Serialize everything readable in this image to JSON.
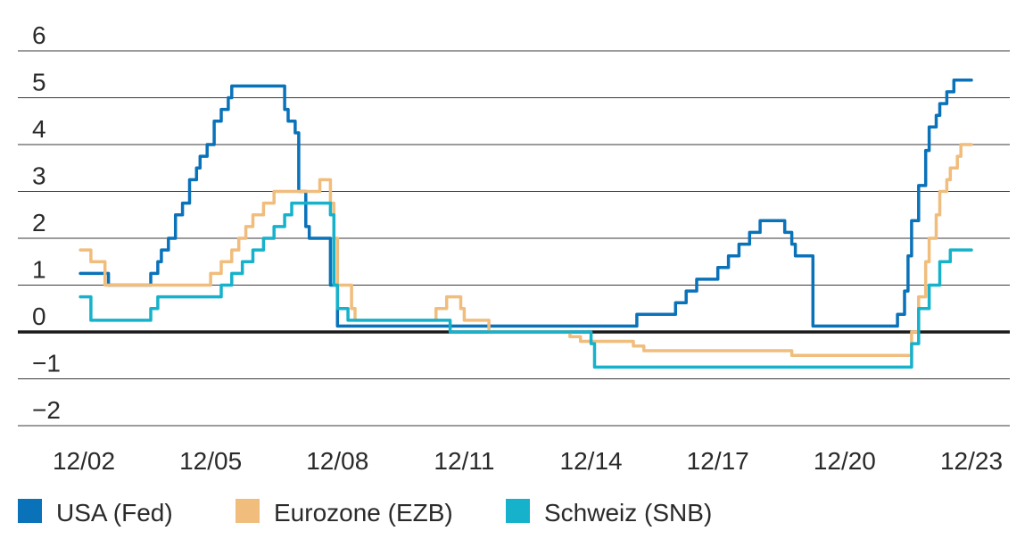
{
  "chart_data": {
    "type": "line",
    "title": "",
    "xlabel": "",
    "ylabel": "",
    "ylim": [
      -2,
      6
    ],
    "xlim": [
      "2002-12",
      "2023-12"
    ],
    "yticks": [
      "6",
      "5",
      "4",
      "3",
      "2",
      "1",
      "0",
      "−1",
      "−2"
    ],
    "ytick_values": [
      6,
      5,
      4,
      3,
      2,
      1,
      0,
      -1,
      -2
    ],
    "xticks": [
      "12/02",
      "12/05",
      "12/08",
      "12/11",
      "12/14",
      "12/17",
      "12/20",
      "12/23"
    ],
    "xtick_values": [
      "2002-12",
      "2005-12",
      "2008-12",
      "2011-12",
      "2014-12",
      "2017-12",
      "2020-12",
      "2023-12"
    ],
    "grid": "horizontal",
    "zero_line": true,
    "legend_position": "bottom",
    "series": [
      {
        "name": "USA (Fed)",
        "color": "#0a72b9",
        "points": [
          [
            "2002-11",
            1.25
          ],
          [
            "2003-06",
            1.25
          ],
          [
            "2003-07",
            1.0
          ],
          [
            "2004-06",
            1.0
          ],
          [
            "2004-07",
            1.25
          ],
          [
            "2004-09",
            1.5
          ],
          [
            "2004-10",
            1.75
          ],
          [
            "2004-12",
            2.0
          ],
          [
            "2005-02",
            2.5
          ],
          [
            "2005-04",
            2.75
          ],
          [
            "2005-06",
            3.25
          ],
          [
            "2005-08",
            3.5
          ],
          [
            "2005-09",
            3.75
          ],
          [
            "2005-11",
            4.0
          ],
          [
            "2006-01",
            4.5
          ],
          [
            "2006-03",
            4.75
          ],
          [
            "2006-05",
            5.0
          ],
          [
            "2006-06",
            5.25
          ],
          [
            "2007-08",
            5.25
          ],
          [
            "2007-09",
            4.75
          ],
          [
            "2007-10",
            4.5
          ],
          [
            "2007-12",
            4.25
          ],
          [
            "2008-01",
            3.0
          ],
          [
            "2008-03",
            2.25
          ],
          [
            "2008-04",
            2.0
          ],
          [
            "2008-09",
            2.0
          ],
          [
            "2008-10",
            1.0
          ],
          [
            "2008-12",
            0.125
          ],
          [
            "2015-12",
            0.125
          ],
          [
            "2016-01",
            0.375
          ],
          [
            "2016-12",
            0.625
          ],
          [
            "2017-03",
            0.875
          ],
          [
            "2017-06",
            1.125
          ],
          [
            "2017-12",
            1.375
          ],
          [
            "2018-03",
            1.625
          ],
          [
            "2018-06",
            1.875
          ],
          [
            "2018-09",
            2.125
          ],
          [
            "2018-12",
            2.375
          ],
          [
            "2019-07",
            2.125
          ],
          [
            "2019-09",
            1.875
          ],
          [
            "2019-10",
            1.625
          ],
          [
            "2020-03",
            0.125
          ],
          [
            "2022-02",
            0.125
          ],
          [
            "2022-03",
            0.375
          ],
          [
            "2022-05",
            0.875
          ],
          [
            "2022-06",
            1.625
          ],
          [
            "2022-07",
            2.375
          ],
          [
            "2022-09",
            3.125
          ],
          [
            "2022-11",
            3.875
          ],
          [
            "2022-12",
            4.375
          ],
          [
            "2023-02",
            4.625
          ],
          [
            "2023-03",
            4.875
          ],
          [
            "2023-05",
            5.125
          ],
          [
            "2023-07",
            5.375
          ],
          [
            "2023-12",
            5.375
          ]
        ]
      },
      {
        "name": "Eurozone (EZB)",
        "color": "#f0bd7d",
        "points": [
          [
            "2002-11",
            1.75
          ],
          [
            "2003-02",
            1.5
          ],
          [
            "2003-06",
            1.0
          ],
          [
            "2005-11",
            1.0
          ],
          [
            "2005-12",
            1.25
          ],
          [
            "2006-03",
            1.5
          ],
          [
            "2006-06",
            1.75
          ],
          [
            "2006-08",
            2.0
          ],
          [
            "2006-10",
            2.25
          ],
          [
            "2006-12",
            2.5
          ],
          [
            "2007-03",
            2.75
          ],
          [
            "2007-06",
            3.0
          ],
          [
            "2008-07",
            3.25
          ],
          [
            "2008-10",
            2.75
          ],
          [
            "2008-11",
            2.0
          ],
          [
            "2008-12",
            1.0
          ],
          [
            "2009-01",
            1.0
          ],
          [
            "2009-04",
            0.5
          ],
          [
            "2009-05",
            0.25
          ],
          [
            "2011-04",
            0.5
          ],
          [
            "2011-07",
            0.75
          ],
          [
            "2011-11",
            0.5
          ],
          [
            "2011-12",
            0.25
          ],
          [
            "2012-07",
            0.0
          ],
          [
            "2014-06",
            -0.1
          ],
          [
            "2014-09",
            -0.2
          ],
          [
            "2015-12",
            -0.3
          ],
          [
            "2016-03",
            -0.4
          ],
          [
            "2019-09",
            -0.5
          ],
          [
            "2022-06",
            -0.5
          ],
          [
            "2022-07",
            0.0
          ],
          [
            "2022-09",
            0.75
          ],
          [
            "2022-11",
            1.5
          ],
          [
            "2022-12",
            2.0
          ],
          [
            "2023-02",
            2.5
          ],
          [
            "2023-03",
            3.0
          ],
          [
            "2023-05",
            3.25
          ],
          [
            "2023-06",
            3.5
          ],
          [
            "2023-08",
            3.75
          ],
          [
            "2023-09",
            4.0
          ],
          [
            "2023-12",
            4.0
          ]
        ]
      },
      {
        "name": "Schweiz (SNB)",
        "color": "#16b2cb",
        "points": [
          [
            "2002-11",
            0.75
          ],
          [
            "2003-02",
            0.25
          ],
          [
            "2004-06",
            0.25
          ],
          [
            "2004-07",
            0.5
          ],
          [
            "2004-09",
            0.75
          ],
          [
            "2005-12",
            0.75
          ],
          [
            "2006-03",
            1.0
          ],
          [
            "2006-06",
            1.25
          ],
          [
            "2006-09",
            1.5
          ],
          [
            "2006-12",
            1.75
          ],
          [
            "2007-03",
            2.0
          ],
          [
            "2007-06",
            2.25
          ],
          [
            "2007-09",
            2.5
          ],
          [
            "2007-11",
            2.75
          ],
          [
            "2008-10",
            2.5
          ],
          [
            "2008-11",
            1.0
          ],
          [
            "2008-12",
            0.5
          ],
          [
            "2009-03",
            0.25
          ],
          [
            "2011-08",
            0.0
          ],
          [
            "2014-12",
            -0.25
          ],
          [
            "2015-01",
            -0.75
          ],
          [
            "2022-06",
            -0.75
          ],
          [
            "2022-07",
            -0.25
          ],
          [
            "2022-09",
            0.5
          ],
          [
            "2022-12",
            1.0
          ],
          [
            "2023-03",
            1.5
          ],
          [
            "2023-06",
            1.75
          ],
          [
            "2023-12",
            1.75
          ]
        ]
      }
    ]
  }
}
